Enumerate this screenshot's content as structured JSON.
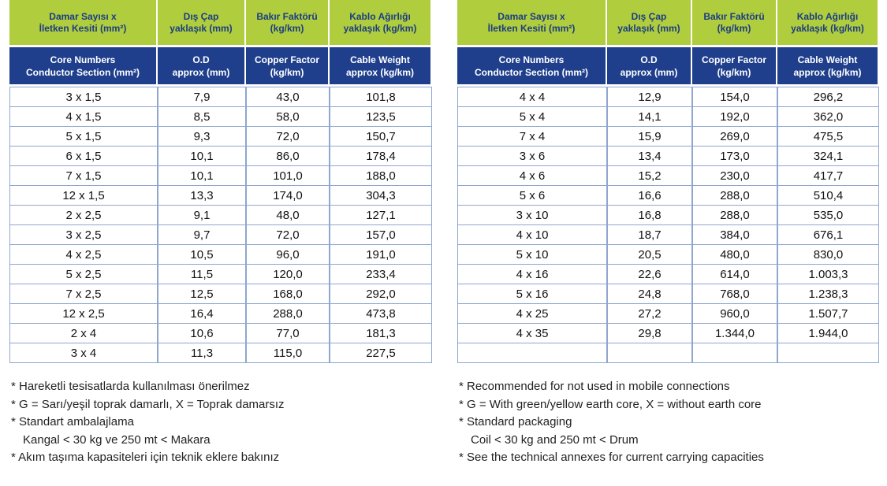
{
  "left_table": {
    "header_tr": [
      [
        "Damar Sayısı x",
        "İletken Kesiti (mm²)"
      ],
      [
        "Dış Çap",
        "yaklaşık (mm)"
      ],
      [
        "Bakır Faktörü",
        "(kg/km)"
      ],
      [
        "Kablo Ağırlığı",
        "yaklaşık (kg/km)"
      ]
    ],
    "header_en": [
      [
        "Core Numbers",
        "Conductor Section (mm²)"
      ],
      [
        "O.D",
        "approx (mm)"
      ],
      [
        "Copper Factor",
        "(kg/km)"
      ],
      [
        "Cable Weight",
        "approx (kg/km)"
      ]
    ],
    "rows": [
      [
        "3 x 1,5",
        "7,9",
        "43,0",
        "101,8"
      ],
      [
        "4 x 1,5",
        "8,5",
        "58,0",
        "123,5"
      ],
      [
        "5 x 1,5",
        "9,3",
        "72,0",
        "150,7"
      ],
      [
        "6 x 1,5",
        "10,1",
        "86,0",
        "178,4"
      ],
      [
        "7 x 1,5",
        "10,1",
        "101,0",
        "188,0"
      ],
      [
        "12 x 1,5",
        "13,3",
        "174,0",
        "304,3"
      ],
      [
        "2 x 2,5",
        "9,1",
        "48,0",
        "127,1"
      ],
      [
        "3 x 2,5",
        "9,7",
        "72,0",
        "157,0"
      ],
      [
        "4 x 2,5",
        "10,5",
        "96,0",
        "191,0"
      ],
      [
        "5 x 2,5",
        "11,5",
        "120,0",
        "233,4"
      ],
      [
        "7 x 2,5",
        "12,5",
        "168,0",
        "292,0"
      ],
      [
        "12 x 2,5",
        "16,4",
        "288,0",
        "473,8"
      ],
      [
        "2 x 4",
        "10,6",
        "77,0",
        "181,3"
      ],
      [
        "3 x 4",
        "11,3",
        "115,0",
        "227,5"
      ]
    ]
  },
  "right_table": {
    "header_tr": [
      [
        "Damar Sayısı x",
        "İletken Kesiti (mm²)"
      ],
      [
        "Dış Çap",
        "yaklaşık (mm)"
      ],
      [
        "Bakır Faktörü",
        "(kg/km)"
      ],
      [
        "Kablo Ağırlığı",
        "yaklaşık (kg/km)"
      ]
    ],
    "header_en": [
      [
        "Core Numbers",
        "Conductor Section (mm²)"
      ],
      [
        "O.D",
        "approx (mm)"
      ],
      [
        "Copper Factor",
        "(kg/km)"
      ],
      [
        "Cable Weight",
        "approx (kg/km)"
      ]
    ],
    "rows": [
      [
        "4 x 4",
        "12,9",
        "154,0",
        "296,2"
      ],
      [
        "5 x 4",
        "14,1",
        "192,0",
        "362,0"
      ],
      [
        "7 x 4",
        "15,9",
        "269,0",
        "475,5"
      ],
      [
        "3 x 6",
        "13,4",
        "173,0",
        "324,1"
      ],
      [
        "4 x 6",
        "15,2",
        "230,0",
        "417,7"
      ],
      [
        "5 x 6",
        "16,6",
        "288,0",
        "510,4"
      ],
      [
        "3 x 10",
        "16,8",
        "288,0",
        "535,0"
      ],
      [
        "4 x 10",
        "18,7",
        "384,0",
        "676,1"
      ],
      [
        "5 x 10",
        "20,5",
        "480,0",
        "830,0"
      ],
      [
        "4 x 16",
        "22,6",
        "614,0",
        "1.003,3"
      ],
      [
        "5 x 16",
        "24,8",
        "768,0",
        "1.238,3"
      ],
      [
        "4 x 25",
        "27,2",
        "960,0",
        "1.507,7"
      ],
      [
        "4 x 35",
        "29,8",
        "1.344,0",
        "1.944,0"
      ]
    ]
  },
  "notes_tr": [
    "* Hareketli tesisatlarda kullanılması önerilmez",
    "* G = Sarı/yeşil toprak damarlı, X = Toprak damarsız",
    "* Standart ambalajlama",
    "Kangal < 30 kg ve 250 mt < Makara",
    "* Akım taşıma kapasiteleri için teknik eklere bakınız"
  ],
  "notes_en": [
    "* Recommended for not used in mobile connections",
    "* G = With green/yellow earth core, X = without earth core",
    "* Standard packaging",
    "Coil < 30 kg and 250 mt < Drum",
    "* See the technical annexes for current carrying capacities"
  ]
}
